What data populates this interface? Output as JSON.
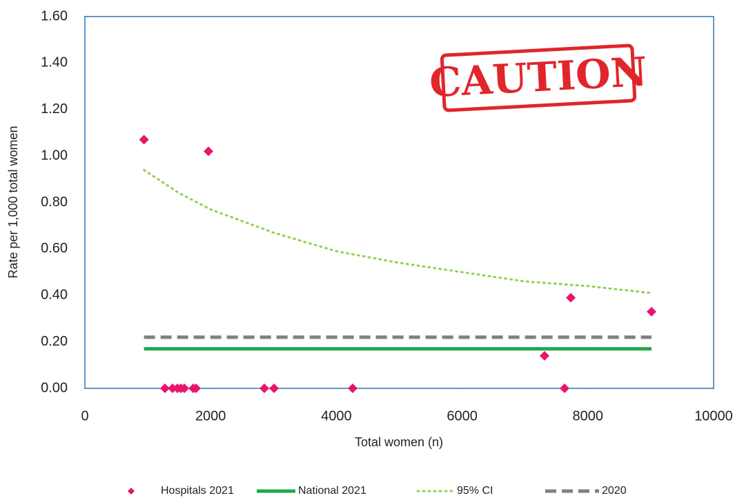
{
  "chart_data": {
    "type": "scatter",
    "x_label": "Total women (n)",
    "y_label": "Rate per 1,000 total women",
    "annotation": "CAUTION",
    "xlim": [
      0,
      10000
    ],
    "xticks": [
      0,
      2000,
      4000,
      6000,
      8000,
      10000
    ],
    "ylim": [
      0,
      1.6
    ],
    "yticks": [
      {
        "value": 0,
        "label": "0.00"
      },
      {
        "value": 0.2,
        "label": "0.20"
      },
      {
        "value": 0.4,
        "label": "0.40"
      },
      {
        "value": 0.6,
        "label": "0.60"
      },
      {
        "value": 0.8,
        "label": "0.80"
      },
      {
        "value": 1.0,
        "label": "1.00"
      },
      {
        "value": 1.2,
        "label": "1.20"
      },
      {
        "value": 1.4,
        "label": "1.40"
      },
      {
        "value": 1.6,
        "label": "1.60"
      }
    ],
    "series": [
      {
        "name": "Hospitals 2021",
        "color": "#e8156f",
        "type": "scatter",
        "x": [
          940,
          1965,
          1273,
          1394,
          1471,
          1526,
          1581,
          1723,
          1767,
          2854,
          3008,
          4259,
          7629,
          7310,
          7728,
          9012
        ],
        "values": [
          1.07,
          1.02,
          0,
          0,
          0,
          0,
          0,
          0,
          0,
          0,
          0,
          0,
          0,
          0.14,
          0.39,
          0.33
        ]
      },
      {
        "name": "National 2021",
        "color": "#21a84a",
        "type": "line",
        "style": "solid",
        "x": [
          940,
          9012
        ],
        "values": [
          0.17,
          0.17
        ]
      },
      {
        "name": "95% CI",
        "color": "#92d050",
        "type": "line",
        "style": "dotted",
        "x": [
          940,
          1500,
          2000,
          3000,
          4000,
          5000,
          6000,
          7000,
          8000,
          9012
        ],
        "values": [
          0.94,
          0.84,
          0.77,
          0.67,
          0.59,
          0.54,
          0.5,
          0.46,
          0.44,
          0.41
        ]
      },
      {
        "name": "2020",
        "color": "#808080",
        "type": "line",
        "style": "dashed",
        "x": [
          940,
          9012
        ],
        "values": [
          0.22,
          0.22
        ]
      }
    ]
  }
}
